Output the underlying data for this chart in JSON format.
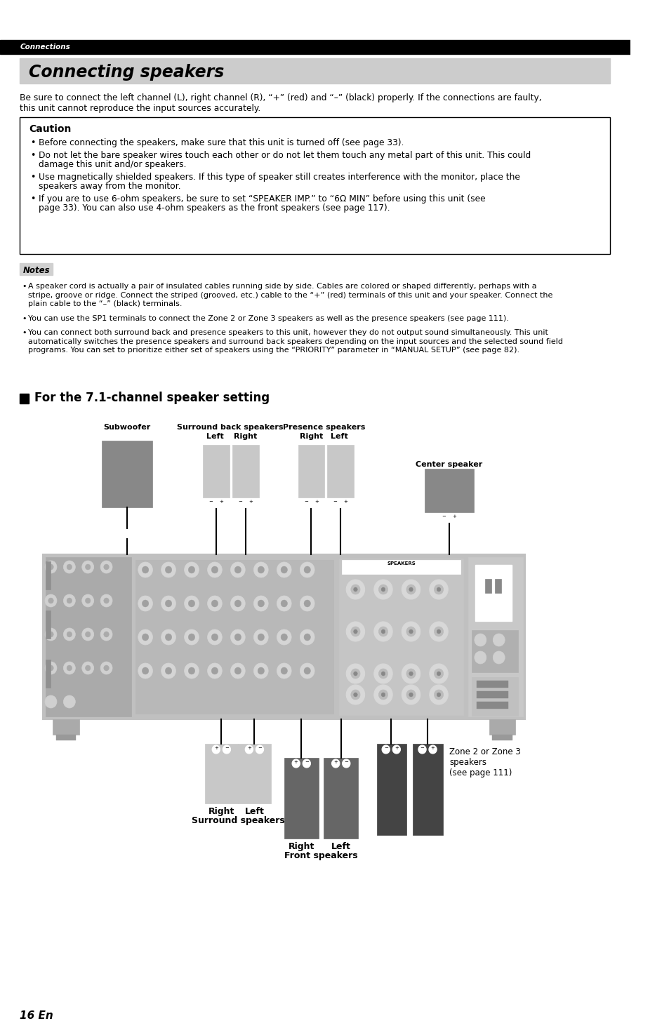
{
  "page_bg": "#ffffff",
  "top_bar_color": "#000000",
  "top_bar_text": "Connections",
  "top_bar_text_color": "#ffffff",
  "title_bg": "#cccccc",
  "title_text": "Connecting speakers",
  "title_text_color": "#000000",
  "intro_line1": "Be sure to connect the left channel (L), right channel (R), “+” (red) and “–” (black) properly. If the connections are faulty,",
  "intro_line2": "this unit cannot reproduce the input sources accurately.",
  "caution_title": "Caution",
  "caution_items": [
    "Before connecting the speakers, make sure that this unit is turned off (see page 33).",
    "Do not let the bare speaker wires touch each other or do not let them touch any metal part of this unit. This could damage this unit and/or speakers.",
    "Use magnetically shielded speakers. If this type of speaker still creates interference with the monitor, place the speakers away from the monitor.",
    "If you are to use 6-ohm speakers, be sure to set “SPEAKER IMP.” to “6Ω MIN” before using this unit (see page 33). You can also use 4-ohm speakers as the front speakers (see page 117)."
  ],
  "notes_title": "Notes",
  "notes_item1_line1": "A speaker cord is actually a pair of insulated cables running side by side. Cables are colored or shaped differently, perhaps with a",
  "notes_item1_line2": "stripe, groove or ridge. Connect the striped (grooved, etc.) cable to the “+” (red) terminals of this unit and your speaker. Connect the",
  "notes_item1_line3": "plain cable to the “–” (black) terminals.",
  "notes_item2": "You can use the SP1 terminals to connect the Zone 2 or Zone 3 speakers as well as the presence speakers (see page 111).",
  "notes_item3_line1": "You can connect both surround back and presence speakers to this unit, however they do not output sound simultaneously. This unit",
  "notes_item3_line2": "automatically switches the presence speakers and surround back speakers depending on the input sources and the selected sound field",
  "notes_item3_line3": "programs. You can set to prioritize either set of speakers using the “PRIORITY” parameter in “MANUAL SETUP” (see page 82).",
  "section_title": "For the 7.1-channel speaker setting",
  "page_number": "16 En",
  "col_light": "#c8c8c8",
  "col_medium": "#aaaaaa",
  "col_dark": "#888888",
  "col_darker": "#666666",
  "col_darkest": "#444444",
  "rec_fill": "#c0c0c0",
  "rec_inner": "#b0b0b0"
}
